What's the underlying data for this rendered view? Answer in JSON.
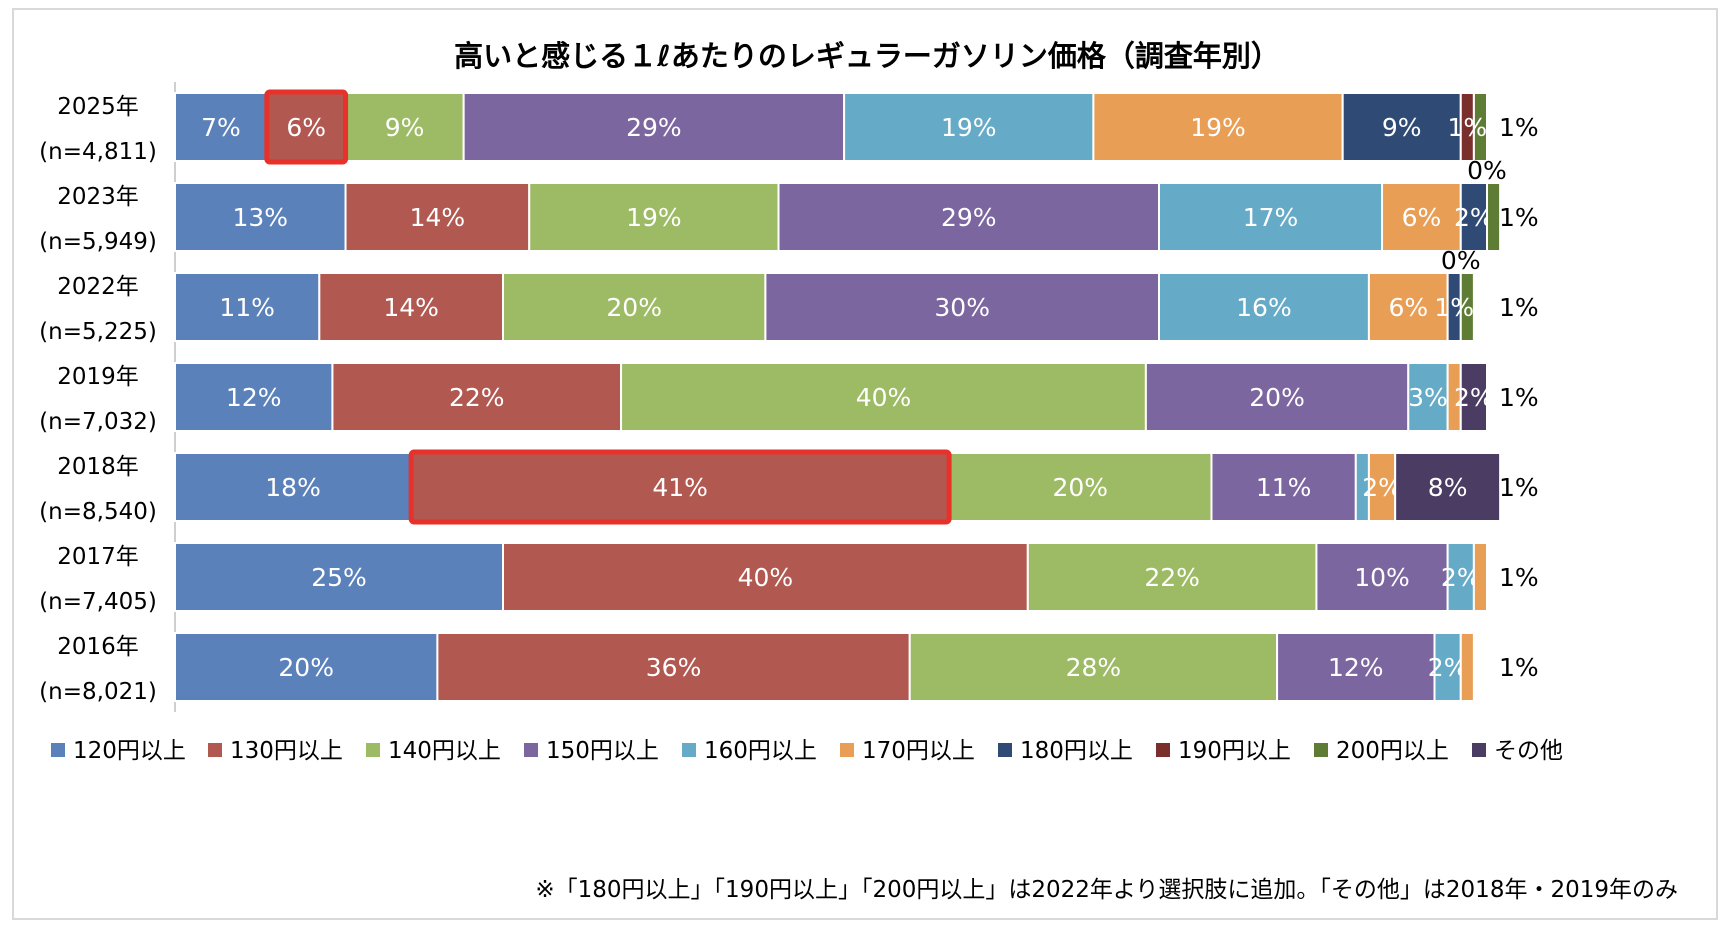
{
  "chart_data": {
    "type": "bar",
    "orientation": "horizontal",
    "stacked": true,
    "title": "高いと感じる１ℓあたりのレギュラーガソリン価格（調査年別）",
    "categories": [
      {
        "year": "2025年",
        "n": "(n=4,811)"
      },
      {
        "year": "2023年",
        "n": "(n=5,949)"
      },
      {
        "year": "2022年",
        "n": "(n=5,225)"
      },
      {
        "year": "2019年",
        "n": "(n=7,032)"
      },
      {
        "year": "2018年",
        "n": "(n=8,540)"
      },
      {
        "year": "2017年",
        "n": "(n=7,405)"
      },
      {
        "year": "2016年",
        "n": "(n=8,021)"
      }
    ],
    "series": [
      {
        "name": "120円以上",
        "color": "#5b81bb",
        "values": [
          7,
          13,
          11,
          12,
          18,
          25,
          20
        ]
      },
      {
        "name": "130円以上",
        "color": "#b15851",
        "values": [
          6,
          14,
          14,
          22,
          41,
          40,
          36
        ]
      },
      {
        "name": "140円以上",
        "color": "#9dba64",
        "values": [
          9,
          19,
          20,
          40,
          20,
          22,
          28
        ]
      },
      {
        "name": "150円以上",
        "color": "#7c66a0",
        "values": [
          29,
          29,
          30,
          20,
          11,
          10,
          12
        ]
      },
      {
        "name": "160円以上",
        "color": "#65aac6",
        "values": [
          19,
          17,
          16,
          3,
          1,
          2,
          2
        ]
      },
      {
        "name": "170円以上",
        "color": "#e89e55",
        "values": [
          19,
          6,
          6,
          1,
          2,
          1,
          1
        ]
      },
      {
        "name": "180円以上",
        "color": "#2f4b75",
        "values": [
          9,
          2,
          1,
          null,
          null,
          null,
          null
        ]
      },
      {
        "name": "190円以上",
        "color": "#7a2f2c",
        "values": [
          1,
          0,
          0,
          null,
          null,
          null,
          null
        ]
      },
      {
        "name": "200円以上",
        "color": "#5f7c34",
        "values": [
          1,
          1,
          1,
          null,
          null,
          null,
          null
        ]
      },
      {
        "name": "その他",
        "color": "#4a3c63",
        "values": [
          null,
          null,
          null,
          2,
          8,
          null,
          null
        ]
      }
    ],
    "highlights": [
      {
        "category": "2025年",
        "series": "130円以上"
      },
      {
        "category": "2018年",
        "series": "130円以上"
      }
    ],
    "xlim": [
      0,
      100
    ],
    "legend": "bottom",
    "footnote": "※「180円以上」「190円以上」「200円以上」は2022年より選択肢に追加。「その他」は2018年・2019年のみ"
  }
}
